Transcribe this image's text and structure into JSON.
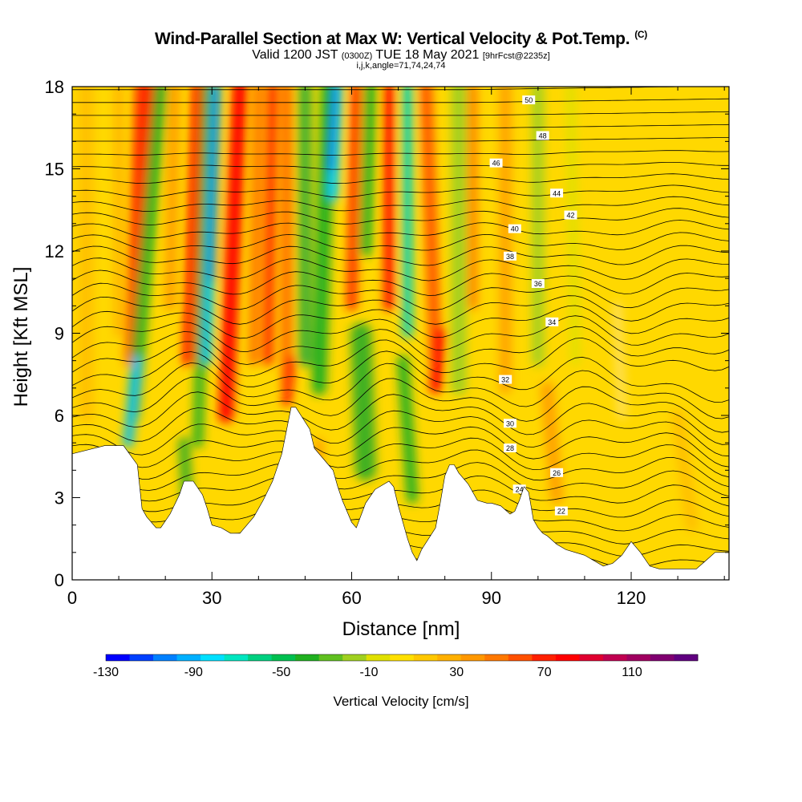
{
  "header": {
    "title": "Wind-Parallel Section at Max W: Vertical Velocity & Pot.Temp.",
    "copyright": "(C)",
    "valid_prefix": "Valid 1200 JST",
    "utc_time": "(0300Z)",
    "valid_date": "TUE 18 May 2021",
    "forecast_info": "[9hrFcst@2235z]",
    "section_params": "i,j,k,angle=71,74,24,74"
  },
  "chart_data": {
    "type": "heatmap",
    "title": "Wind-Parallel Section at Max W: Vertical Velocity & Pot.Temp.",
    "xlabel": "Distance [nm]",
    "ylabel": "Height [Kft MSL]",
    "xlim": [
      0,
      141
    ],
    "ylim": [
      0,
      18
    ],
    "x_ticks": [
      "0",
      "30",
      "60",
      "90",
      "120"
    ],
    "y_ticks": [
      "0",
      "3",
      "6",
      "9",
      "12",
      "15",
      "18"
    ],
    "x_tick_values": [
      0,
      30,
      60,
      90,
      120
    ],
    "y_tick_values": [
      0,
      3,
      6,
      9,
      12,
      15,
      18
    ],
    "colorbar": {
      "title": "Vertical Velocity [cm/s]",
      "labels": [
        "-130",
        "-90",
        "-50",
        "-10",
        "30",
        "70",
        "110"
      ],
      "levels": [
        -130,
        -90,
        -50,
        -10,
        30,
        70,
        110
      ],
      "colors": [
        "#0000ff",
        "#0040ff",
        "#0080ff",
        "#00b0ff",
        "#00e0ff",
        "#00e6c0",
        "#00d080",
        "#00c050",
        "#20b020",
        "#60c020",
        "#a0d020",
        "#e0e000",
        "#ffe000",
        "#ffc800",
        "#ffb000",
        "#ff9800",
        "#ff7800",
        "#ff5000",
        "#ff2000",
        "#ff0000",
        "#e00030",
        "#c00050",
        "#a00060",
        "#800070",
        "#600080"
      ]
    },
    "isotherm_labels": [
      "22",
      "24",
      "26",
      "28",
      "30",
      "32",
      "34",
      "36",
      "38",
      "40",
      "42",
      "44",
      "46",
      "48",
      "50"
    ],
    "terrain_profile": {
      "x": [
        0,
        7,
        11,
        14,
        15,
        16,
        18,
        19,
        21,
        23,
        24,
        26,
        28,
        29,
        30,
        32,
        34,
        36,
        39,
        41,
        43,
        45,
        47,
        48,
        51,
        52,
        55,
        56,
        57,
        58,
        59,
        60,
        61,
        63,
        65,
        68,
        69,
        70,
        71,
        72,
        73,
        74,
        75,
        78,
        79,
        80,
        81,
        82,
        83,
        85,
        87,
        89,
        90,
        92,
        94,
        95,
        96,
        97,
        98,
        99,
        100,
        101,
        102,
        104,
        106,
        108,
        110,
        112,
        114,
        116,
        118,
        120,
        122,
        124,
        126,
        128,
        130,
        132,
        134,
        136,
        138,
        140,
        141
      ],
      "h": [
        4.6,
        4.9,
        4.9,
        4.2,
        2.6,
        2.3,
        1.9,
        1.9,
        2.4,
        3.1,
        3.6,
        3.6,
        3.1,
        2.6,
        2.0,
        1.9,
        1.7,
        1.7,
        2.3,
        2.9,
        3.6,
        4.6,
        6.3,
        6.3,
        5.5,
        4.8,
        4.2,
        4.0,
        3.4,
        2.9,
        2.5,
        2.1,
        1.9,
        2.8,
        3.3,
        3.6,
        3.4,
        2.7,
        2.1,
        1.5,
        1.0,
        0.7,
        1.1,
        1.9,
        2.8,
        3.8,
        4.2,
        4.2,
        3.9,
        3.5,
        2.9,
        2.8,
        2.8,
        2.7,
        2.4,
        2.5,
        2.9,
        3.4,
        3.2,
        2.2,
        1.9,
        1.7,
        1.6,
        1.3,
        1.1,
        1.0,
        0.9,
        0.7,
        0.5,
        0.6,
        0.9,
        1.4,
        1.0,
        0.5,
        0.4,
        0.4,
        0.4,
        0.4,
        0.4,
        0.7,
        1.0,
        1.0,
        1.0
      ]
    }
  }
}
